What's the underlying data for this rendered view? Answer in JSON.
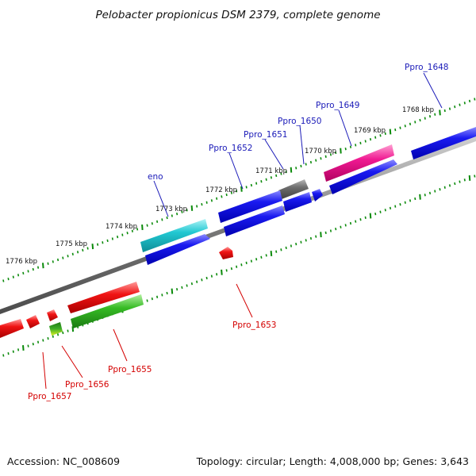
{
  "title": "Pelobacter propionicus DSM 2379, complete genome",
  "footer": {
    "accession": "Accession: NC_008609",
    "topology": "Topology: circular; Length: 4,008,000 bp; Genes: 3,643"
  },
  "colors": {
    "backbone": "#7a7a7a",
    "tick_green": "#0a8a0a",
    "label_blue": "#1a1ab8",
    "label_red": "#d40000",
    "gene_blue": "#0a0aee",
    "gene_cyan": "#20c8d0",
    "gene_magenta": "#ee1a90",
    "gene_gray": "#6a6a6a",
    "gene_red": "#ee1010",
    "gene_green": "#33bb22"
  },
  "ruler": {
    "ticks": [
      {
        "label": "1768 kbp"
      },
      {
        "label": "1769 kbp"
      },
      {
        "label": "1770 kbp"
      },
      {
        "label": "1771 kbp"
      },
      {
        "label": "1772 kbp"
      },
      {
        "label": "1773 kbp"
      },
      {
        "label": "1774 kbp"
      },
      {
        "label": "1775 kbp"
      },
      {
        "label": "1776 kbp"
      }
    ]
  },
  "genes": [
    {
      "name": "Ppro_1648",
      "strand": "plus",
      "color": "blue"
    },
    {
      "name": "Ppro_1649",
      "strand": "plus",
      "color": "magenta"
    },
    {
      "name": "Ppro_1650",
      "strand": "plus",
      "color": "gray"
    },
    {
      "name": "Ppro_1651",
      "strand": "plus",
      "color": "blue"
    },
    {
      "name": "Ppro_1652",
      "strand": "plus",
      "color": "blue"
    },
    {
      "name": "eno",
      "strand": "plus",
      "color": "cyan"
    },
    {
      "name": "Ppro_1653",
      "strand": "minus",
      "color": "red"
    },
    {
      "name": "Ppro_1655",
      "strand": "minus",
      "color": "green"
    },
    {
      "name": "Ppro_1656",
      "strand": "minus",
      "color": "green"
    },
    {
      "name": "Ppro_1657",
      "strand": "minus",
      "color": "red"
    }
  ]
}
